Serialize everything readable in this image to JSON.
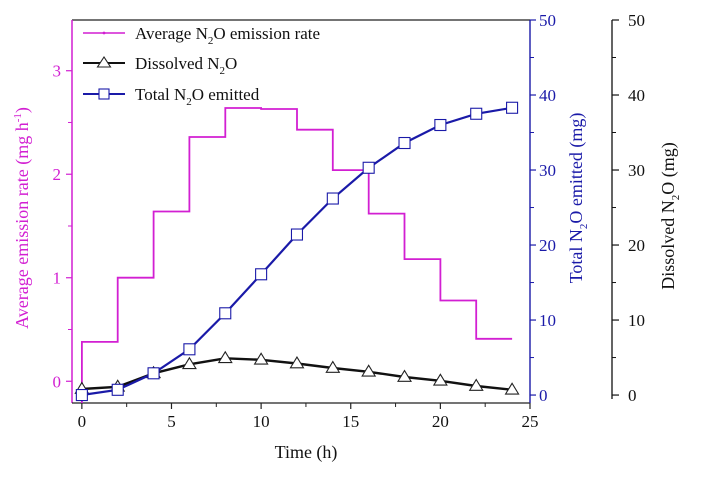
{
  "chart_data": {
    "type": "line",
    "title": "",
    "xlabel": "Time (h)",
    "xlim": [
      -0.55,
      25
    ],
    "xticks": [
      0,
      5,
      10,
      15,
      20,
      25
    ],
    "axes": {
      "left": {
        "label_main": "Average emission rate (mg h",
        "label_sup": "-1",
        "label_end": ")",
        "ylim": [
          -0.21,
          3.49
        ],
        "ticks": [
          0,
          1,
          2,
          3
        ],
        "color": "#d21fd2"
      },
      "right_inner": {
        "label_pre": "Total N",
        "label_sub": "2",
        "label_post": "O emitted (mg)",
        "ylim": [
          -1.06,
          50
        ],
        "ticks": [
          0,
          10,
          20,
          30,
          40,
          50
        ],
        "color": "#1a1aa8"
      },
      "right_outer": {
        "label_pre": "Dissolved N",
        "label_sub": "2",
        "label_post": "O (mg)",
        "ylim": [
          -1.06,
          50
        ],
        "ticks": [
          0,
          10,
          20,
          30,
          40,
          50
        ],
        "color": "#111111"
      }
    },
    "series": [
      {
        "name": "Average N2O emission rate",
        "legend_pre": "Average N",
        "legend_sub": "2",
        "legend_post": "O emission rate",
        "axis": "left",
        "style": "step",
        "color": "#d21fd2",
        "x_edges": [
          0,
          2,
          4,
          6,
          8,
          10,
          12,
          14,
          16,
          18,
          20,
          22,
          24
        ],
        "values": [
          0.38,
          1.0,
          1.64,
          2.36,
          2.64,
          2.63,
          2.43,
          2.04,
          1.62,
          1.18,
          0.78,
          0.41
        ]
      },
      {
        "name": "Dissolved N2O",
        "legend_pre": "Dissolved N",
        "legend_sub": "2",
        "legend_post": "O",
        "axis": "right_outer",
        "style": "line-triangle",
        "color": "#111111",
        "x": [
          0,
          2,
          4,
          6,
          8,
          10,
          12,
          14,
          16,
          18,
          20,
          22,
          24
        ],
        "values": [
          0.8,
          1.1,
          2.9,
          4.1,
          4.9,
          4.7,
          4.2,
          3.6,
          3.1,
          2.4,
          1.9,
          1.2,
          0.7
        ]
      },
      {
        "name": "Total N2O emitted",
        "legend_pre": "Total N",
        "legend_sub": "2",
        "legend_post": "O emitted",
        "axis": "right_inner",
        "style": "line-square",
        "color": "#1a1aa8",
        "x": [
          0,
          2,
          4,
          6,
          8,
          10,
          12,
          14,
          16,
          18,
          20,
          22,
          24
        ],
        "values": [
          0.0,
          0.7,
          2.9,
          6.1,
          10.9,
          16.1,
          21.4,
          26.2,
          30.3,
          33.6,
          36.0,
          37.5,
          38.3
        ]
      }
    ],
    "legend_position": "top-left",
    "grid": false
  }
}
